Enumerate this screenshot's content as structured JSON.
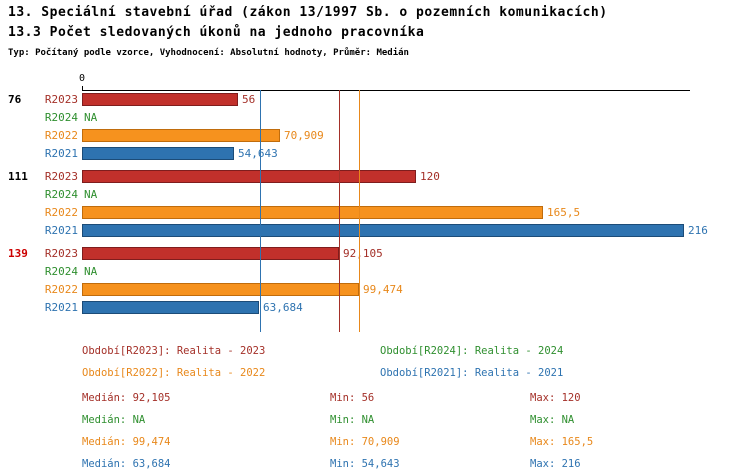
{
  "header": {
    "title": "13. Speciální stavební úřad (zákon 13/1997 Sb. o pozemních komunikacích)",
    "subtitle": "13.3 Počet sledovaných úkonů na jednoho pracovníka",
    "meta": "Typ: Počítaný podle vzorce, Vyhodnocení: Absolutní hodnoty, Průměr: Medián"
  },
  "colors": {
    "axis": "#000000",
    "highlight_label": "#cc0000",
    "series": {
      "R2023": {
        "text": "#a43028",
        "fill": "#c1302b",
        "border": "#7f1d1d"
      },
      "R2024": {
        "text": "#2f8f2f",
        "fill": "#2f8f2f",
        "border": "#1f6b1f"
      },
      "R2022": {
        "text": "#e8881b",
        "fill": "#f6921e",
        "border": "#c06c0c"
      },
      "R2021": {
        "text": "#2e73b0",
        "fill": "#2e73b0",
        "border": "#1c4c78"
      }
    }
  },
  "chart_data": {
    "type": "bar",
    "orientation": "horizontal",
    "title": "13. Speciální stavební úřad (zákon 13/1997 Sb. o pozemních komunikacích)",
    "subtitle": "13.3 Počet sledovaných úkonů na jednoho pracovníka",
    "axis": {
      "origin_label": "0",
      "min": 0,
      "max": 216,
      "gridlines": false
    },
    "series_order": [
      "R2023",
      "R2024",
      "R2022",
      "R2021"
    ],
    "categories": [
      "76",
      "111",
      "139"
    ],
    "median_lines": [
      {
        "series": "R2023",
        "value": 92.105
      },
      {
        "series": "R2022",
        "value": 99.474
      },
      {
        "series": "R2021",
        "value": 63.684
      }
    ],
    "groups": [
      {
        "label": "76",
        "highlight": false,
        "bars": [
          {
            "series": "R2023",
            "value": 56,
            "label": "56"
          },
          {
            "series": "R2024",
            "value": null,
            "label": "NA"
          },
          {
            "series": "R2022",
            "value": 70.909,
            "label": "70,909"
          },
          {
            "series": "R2021",
            "value": 54.643,
            "label": "54,643"
          }
        ]
      },
      {
        "label": "111",
        "highlight": false,
        "bars": [
          {
            "series": "R2023",
            "value": 120,
            "label": "120"
          },
          {
            "series": "R2024",
            "value": null,
            "label": "NA"
          },
          {
            "series": "R2022",
            "value": 165.5,
            "label": "165,5"
          },
          {
            "series": "R2021",
            "value": 216,
            "label": "216"
          }
        ]
      },
      {
        "label": "139",
        "highlight": true,
        "bars": [
          {
            "series": "R2023",
            "value": 92.105,
            "label": "92,105"
          },
          {
            "series": "R2024",
            "value": null,
            "label": "NA"
          },
          {
            "series": "R2022",
            "value": 99.474,
            "label": "99,474"
          },
          {
            "series": "R2021",
            "value": 63.684,
            "label": "63,684"
          }
        ]
      }
    ]
  },
  "legend": [
    {
      "series": "R2023",
      "text": "Období[R2023]: Realita - 2023",
      "col": 1,
      "row": 1
    },
    {
      "series": "R2024",
      "text": "Období[R2024]: Realita - 2024",
      "col": 2,
      "row": 1
    },
    {
      "series": "R2022",
      "text": "Období[R2022]: Realita - 2022",
      "col": 1,
      "row": 2
    },
    {
      "series": "R2021",
      "text": "Období[R2021]: Realita - 2021",
      "col": 2,
      "row": 2
    }
  ],
  "stats": [
    {
      "series": "R2023",
      "cells": [
        "Medián: 92,105",
        "Min: 56",
        "Max: 120"
      ]
    },
    {
      "series": "R2024",
      "cells": [
        "Medián: NA",
        "Min: NA",
        "Max: NA"
      ]
    },
    {
      "series": "R2022",
      "cells": [
        "Medián: 99,474",
        "Min: 70,909",
        "Max: 165,5"
      ]
    },
    {
      "series": "R2021",
      "cells": [
        "Medián: 63,684",
        "Min: 54,643",
        "Max: 216"
      ]
    }
  ]
}
